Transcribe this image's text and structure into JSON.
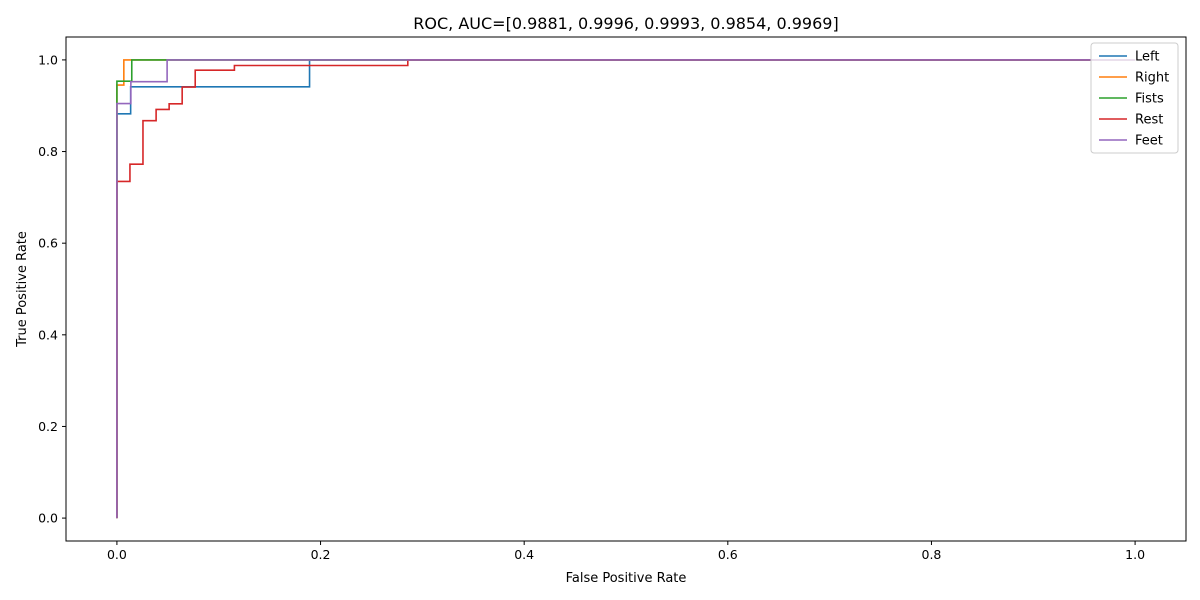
{
  "chart_data": {
    "type": "line",
    "title": "ROC, AUC=[0.9881, 0.9996, 0.9993, 0.9854, 0.9969]",
    "xlabel": "False Positive Rate",
    "ylabel": "True Positive Rate",
    "xlim": [
      -0.05,
      1.05
    ],
    "ylim": [
      -0.05,
      1.05
    ],
    "xticks": [
      0.0,
      0.2,
      0.4,
      0.6,
      0.8,
      1.0
    ],
    "yticks": [
      0.0,
      0.2,
      0.4,
      0.6,
      0.8,
      1.0
    ],
    "xtick_labels": [
      "0.0",
      "0.2",
      "0.4",
      "0.6",
      "0.8",
      "1.0"
    ],
    "ytick_labels": [
      "0.0",
      "0.2",
      "0.4",
      "0.6",
      "0.8",
      "1.0"
    ],
    "grid": false,
    "legend_position": "top-right",
    "series": [
      {
        "name": "Left",
        "color": "#1f77b4",
        "x": [
          0.0,
          0.0,
          0.0,
          0.0135,
          0.0135,
          0.1892,
          0.1892,
          1.0
        ],
        "y": [
          0.0,
          0.88,
          0.8824,
          0.8824,
          0.9412,
          0.9412,
          1.0,
          1.0
        ]
      },
      {
        "name": "Right",
        "color": "#ff7f0e",
        "x": [
          0.0,
          0.0,
          0.0,
          0.0068,
          0.0068,
          1.0
        ],
        "y": [
          0.0,
          0.9,
          0.945,
          0.945,
          1.0,
          1.0
        ]
      },
      {
        "name": "Fists",
        "color": "#2ca02c",
        "x": [
          0.0,
          0.0,
          0.0,
          0.0146,
          0.0146,
          1.0
        ],
        "y": [
          0.0,
          0.91,
          0.9535,
          0.9535,
          1.0,
          1.0
        ]
      },
      {
        "name": "Rest",
        "color": "#d62728",
        "x": [
          0.0,
          0.0,
          0.0128,
          0.0128,
          0.0256,
          0.0256,
          0.0385,
          0.0385,
          0.0513,
          0.0513,
          0.0641,
          0.0641,
          0.0769,
          0.0769,
          0.1154,
          0.1154,
          0.2857,
          0.2857,
          1.0
        ],
        "y": [
          0.0,
          0.7347,
          0.7347,
          0.7724,
          0.7724,
          0.8673,
          0.8673,
          0.8918,
          0.8918,
          0.9041,
          0.9041,
          0.9408,
          0.9408,
          0.9776,
          0.9776,
          0.9878,
          0.9878,
          1.0,
          1.0
        ]
      },
      {
        "name": "Feet",
        "color": "#9467bd",
        "x": [
          0.0,
          0.0,
          0.0137,
          0.0137,
          0.0493,
          0.0493,
          1.0
        ],
        "y": [
          0.0,
          0.9048,
          0.9048,
          0.9524,
          0.9524,
          1.0,
          1.0
        ]
      }
    ]
  }
}
